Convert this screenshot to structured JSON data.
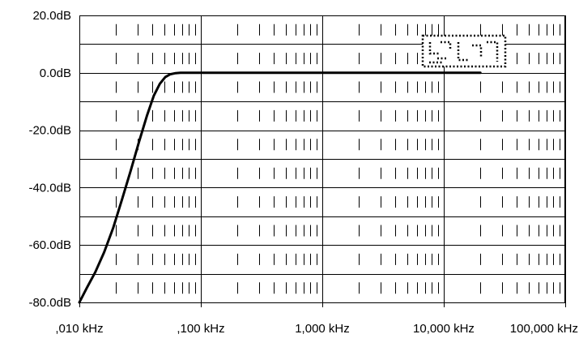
{
  "chart_data": {
    "type": "line",
    "title": "",
    "xlabel": "",
    "ylabel": "",
    "x_scale": "log",
    "x_unit": "kHz",
    "xlim": [
      0.01,
      100
    ],
    "ylim": [
      -80,
      20
    ],
    "grid": true,
    "x_ticks": [
      {
        "value": 0.01,
        "label": ",010 kHz"
      },
      {
        "value": 0.1,
        "label": ",100 kHz"
      },
      {
        "value": 1,
        "label": "1,000 kHz"
      },
      {
        "value": 10,
        "label": "10,000 kHz"
      },
      {
        "value": 100,
        "label": "100,000 kHz"
      }
    ],
    "y_ticks": [
      {
        "value": 20,
        "label": "20.0dB"
      },
      {
        "value": 0,
        "label": "0.0dB"
      },
      {
        "value": -20,
        "label": "-20.0dB"
      },
      {
        "value": -40,
        "label": "-40.0dB"
      },
      {
        "value": -60,
        "label": "-60.0dB"
      },
      {
        "value": -80,
        "label": "-80.0dB"
      }
    ],
    "series": [
      {
        "x": [
          0.01,
          0.0115,
          0.0135,
          0.016,
          0.019,
          0.0225,
          0.0265,
          0.031,
          0.036,
          0.041,
          0.046,
          0.051,
          0.056,
          0.062,
          0.068,
          0.075,
          0.08,
          0.09,
          0.1,
          0.2,
          0.5,
          1,
          2,
          5,
          10,
          20
        ],
        "y": [
          -80,
          -75,
          -69.5,
          -62.5,
          -54,
          -44,
          -34,
          -24,
          -15,
          -8,
          -3.8,
          -1.5,
          -0.5,
          -0.1,
          0,
          0,
          0,
          0,
          0,
          0,
          0,
          0,
          0,
          0,
          0,
          0
        ]
      }
    ],
    "colors": {
      "line": "#000000",
      "grid": "#000000",
      "background": "#ffffff"
    }
  }
}
